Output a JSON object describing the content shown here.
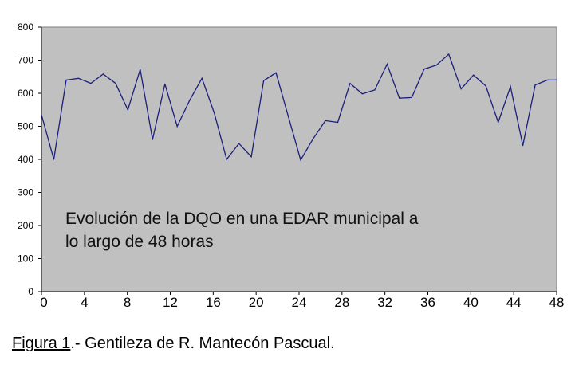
{
  "chart_data": {
    "type": "line",
    "title": "",
    "xlabel": "",
    "ylabel": "",
    "xlim": [
      0,
      48
    ],
    "ylim": [
      0,
      800
    ],
    "x_ticks": [
      "0",
      "4",
      "8",
      "12",
      "16",
      "20",
      "24",
      "28",
      "32",
      "36",
      "40",
      "44",
      "48"
    ],
    "y_ticks": [
      "800",
      "700",
      "600",
      "500",
      "400",
      "300",
      "200",
      "100",
      "0"
    ],
    "grid": false,
    "background_color": "#c0c0c0",
    "line_color": "#1a1f7a",
    "annotation": {
      "line1": "Evolución de la DQO en una EDAR municipal a",
      "line2": "lo largo de 48 horas"
    },
    "series": [
      {
        "x": [
          0,
          1.15,
          2.3,
          3.45,
          4.6,
          5.75,
          6.9,
          8.05,
          9.2,
          10.35,
          11.5,
          12.65,
          13.8,
          14.95,
          16.1,
          17.25,
          18.4,
          19.55,
          20.7,
          21.85,
          23,
          24.15,
          25.3,
          26.45,
          27.6,
          28.75,
          29.9,
          31.05,
          32.2,
          33.35,
          34.5,
          35.65,
          36.8,
          37.95,
          39.1,
          40.25,
          41.4,
          42.55,
          43.7,
          44.85,
          46,
          47.15,
          48.3
        ],
        "y": [
          535,
          400,
          640,
          645,
          630,
          658,
          630,
          550,
          672,
          460,
          628,
          500,
          578,
          645,
          540,
          400,
          448,
          408,
          638,
          662,
          530,
          398,
          462,
          517,
          512,
          630,
          598,
          610,
          688,
          585,
          587,
          673,
          685,
          718,
          613,
          655,
          622,
          512,
          620,
          442,
          625,
          640,
          640
        ]
      }
    ]
  },
  "caption": {
    "label": "Figura 1",
    "text": ".- Gentileza de R. Mantecón Pascual."
  }
}
